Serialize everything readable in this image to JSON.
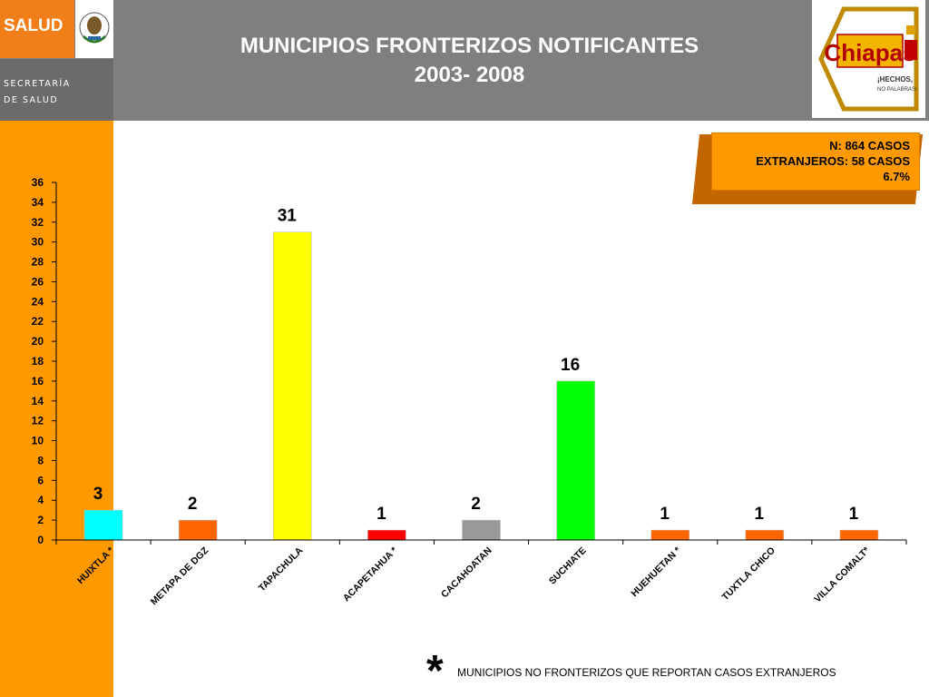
{
  "header": {
    "salud_label": "SALUD",
    "secretaria_line1": "SECRETARÍA",
    "secretaria_line2": "DE SALUD",
    "title_line1": "MUNICIPIOS FRONTERIZOS NOTIFICANTES",
    "title_line2": "2003- 2008",
    "logo_text": "Chiapas",
    "logo_slogan_1": "¡HECHOS,",
    "logo_slogan_2": "NO PALABRAS!"
  },
  "info_box": {
    "line1": "N: 864 CASOS",
    "line2": "EXTRANJEROS: 58 CASOS",
    "line3": "6.7%"
  },
  "footnote": {
    "star": "*",
    "text": "MUNICIPIOS NO FRONTERIZOS QUE REPORTAN CASOS EXTRANJEROS"
  },
  "chart_data": {
    "type": "bar",
    "title": "MUNICIPIOS FRONTERIZOS NOTIFICANTES 2003- 2008",
    "categories": [
      "HUIXTLA *",
      "METAPA DE DGZ",
      "TAPACHULA",
      "ACAPETAHUA *",
      "CACAHOATAN",
      "SUCHIATE",
      "HUEHUETAN *",
      "TUXTLA CHICO",
      "VILLA COMALT*"
    ],
    "values": [
      3,
      2,
      31,
      1,
      2,
      16,
      1,
      1,
      1
    ],
    "colors": [
      "#00ffff",
      "#ff6600",
      "#ffff00",
      "#ff0000",
      "#999999",
      "#00ff00",
      "#ff6600",
      "#ff6600",
      "#ff6600"
    ],
    "ylim": [
      0,
      36
    ],
    "yticks": [
      0,
      2,
      4,
      6,
      8,
      10,
      12,
      14,
      16,
      18,
      20,
      22,
      24,
      26,
      28,
      30,
      32,
      34,
      36
    ],
    "xlabel": "",
    "ylabel": "",
    "grid": false,
    "legend": "none"
  }
}
